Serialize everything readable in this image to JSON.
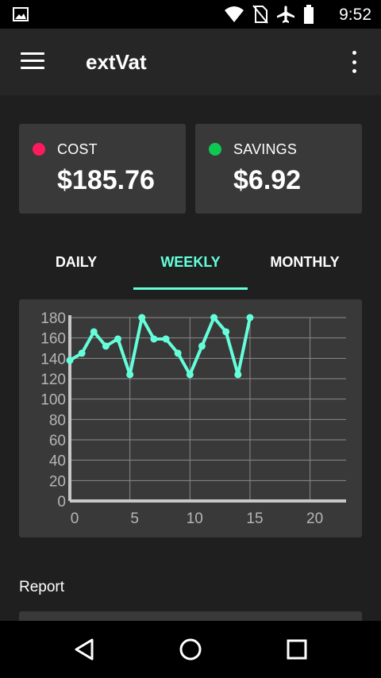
{
  "status_bar": {
    "time": "9:52",
    "icons": [
      "image-icon",
      "wifi-icon",
      "no-sim-icon",
      "airplane-icon",
      "battery-icon"
    ]
  },
  "app_bar": {
    "title": "extVat",
    "menu_icon": "hamburger-menu-icon",
    "overflow_icon": "more-vertical-icon"
  },
  "summary": {
    "cost": {
      "label": "COST",
      "value": "$185.76",
      "color": "#ff1a5e"
    },
    "savings": {
      "label": "SAVINGS",
      "value": "$6.92",
      "color": "#0fc853"
    }
  },
  "tabs": {
    "items": [
      "DAILY",
      "WEEKLY",
      "MONTHLY"
    ],
    "selected": "WEEKLY",
    "accent": "#64ffda"
  },
  "chart_data": {
    "type": "line",
    "title": "",
    "xlabel": "",
    "ylabel": "",
    "xlim": [
      0,
      23
    ],
    "ylim": [
      0,
      180
    ],
    "x_ticks": [
      0,
      5,
      10,
      15,
      20
    ],
    "y_ticks": [
      0,
      20,
      40,
      60,
      80,
      100,
      120,
      140,
      160,
      180
    ],
    "grid": true,
    "series": [
      {
        "color": "#64ffda",
        "x": [
          0,
          1,
          2,
          3,
          4,
          5,
          6,
          7,
          8,
          9,
          10,
          11,
          12,
          13,
          14,
          15
        ],
        "y": [
          138,
          145,
          166,
          152,
          159,
          124,
          180,
          159,
          159,
          145,
          124,
          152,
          180,
          166,
          124,
          180
        ]
      }
    ]
  },
  "report": {
    "label": "Report"
  },
  "nav_bar": {
    "icons": [
      "back-icon",
      "home-icon",
      "recents-icon"
    ]
  }
}
